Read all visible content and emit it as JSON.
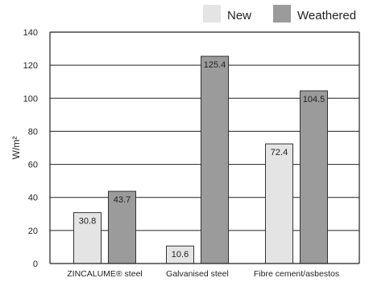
{
  "chart_data": {
    "type": "bar",
    "title": "",
    "xlabel": "",
    "ylabel": "W/m²",
    "ylim": [
      0,
      140
    ],
    "yticks": [
      0,
      20,
      40,
      60,
      80,
      100,
      120,
      140
    ],
    "grid": true,
    "legend_position": "top-right",
    "categories": [
      "ZINCALUME® steel",
      "Galvanised steel",
      "Fibre cement/asbestos"
    ],
    "series": [
      {
        "name": "New",
        "values": [
          30.8,
          10.6,
          72.4
        ],
        "color": "#e4e4e4"
      },
      {
        "name": "Weathered",
        "values": [
          43.7,
          125.4,
          104.5
        ],
        "color": "#9b9b9b"
      }
    ]
  }
}
